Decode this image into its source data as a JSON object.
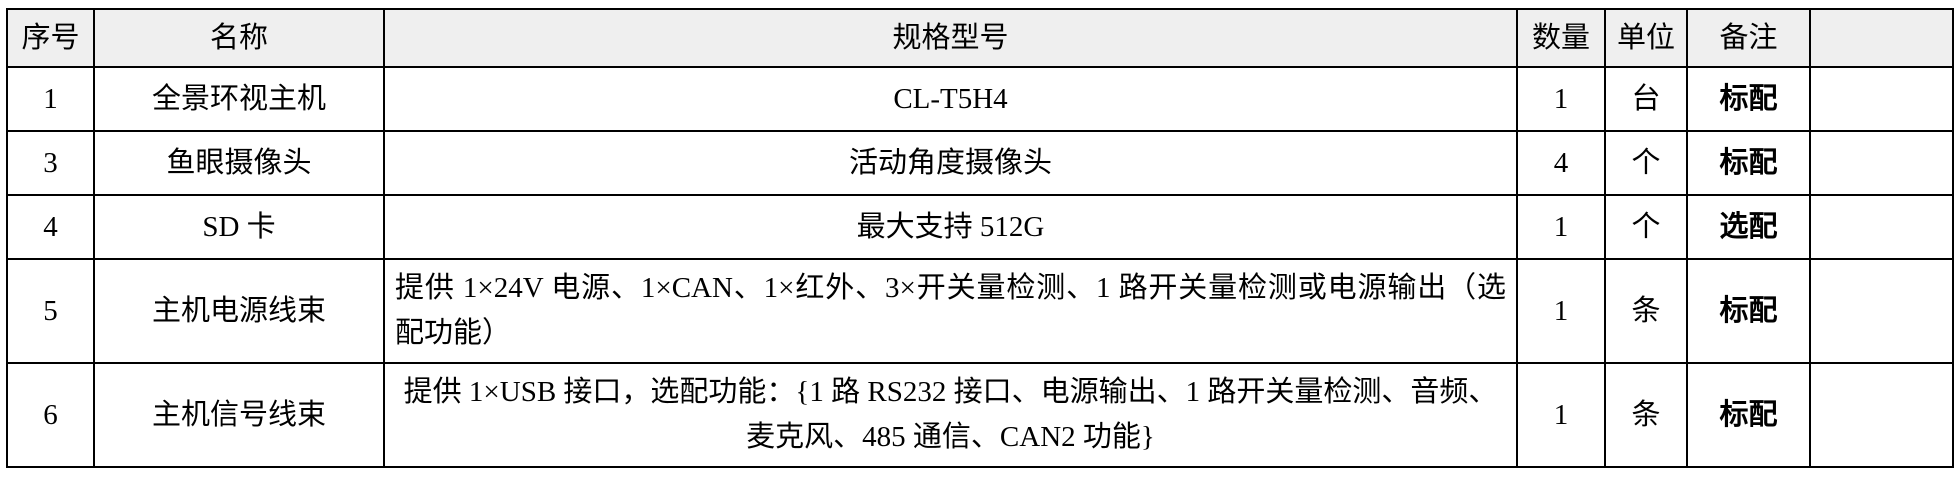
{
  "table": {
    "headers": {
      "no": "序号",
      "name": "名称",
      "spec": "规格型号",
      "qty": "数量",
      "unit": "单位",
      "note": "备注"
    },
    "rows": [
      {
        "no": "1",
        "name": "全景环视主机",
        "spec": "CL-T5H4",
        "qty": "1",
        "unit": "台",
        "note": "标配"
      },
      {
        "no": "3",
        "name": "鱼眼摄像头",
        "spec": "活动角度摄像头",
        "qty": "4",
        "unit": "个",
        "note": "标配"
      },
      {
        "no": "4",
        "name": "SD 卡",
        "spec": "最大支持 512G",
        "qty": "1",
        "unit": "个",
        "note": "选配"
      },
      {
        "no": "5",
        "name": "主机电源线束",
        "spec": "提供 1×24V 电源、1×CAN、1×红外、3×开关量检测、1 路开关量检测或电源输出（选配功能）",
        "qty": "1",
        "unit": "条",
        "note": "标配"
      },
      {
        "no": "6",
        "name": "主机信号线束",
        "spec": "提供 1×USB 接口，选配功能：{1 路 RS232 接口、电源输出、1 路开关量检测、音频、麦克风、485 通信、CAN2 功能}",
        "qty": "1",
        "unit": "条",
        "note": "标配"
      }
    ],
    "colors": {
      "header_bg": "#efefef",
      "border": "#000000",
      "text": "#000000"
    }
  }
}
